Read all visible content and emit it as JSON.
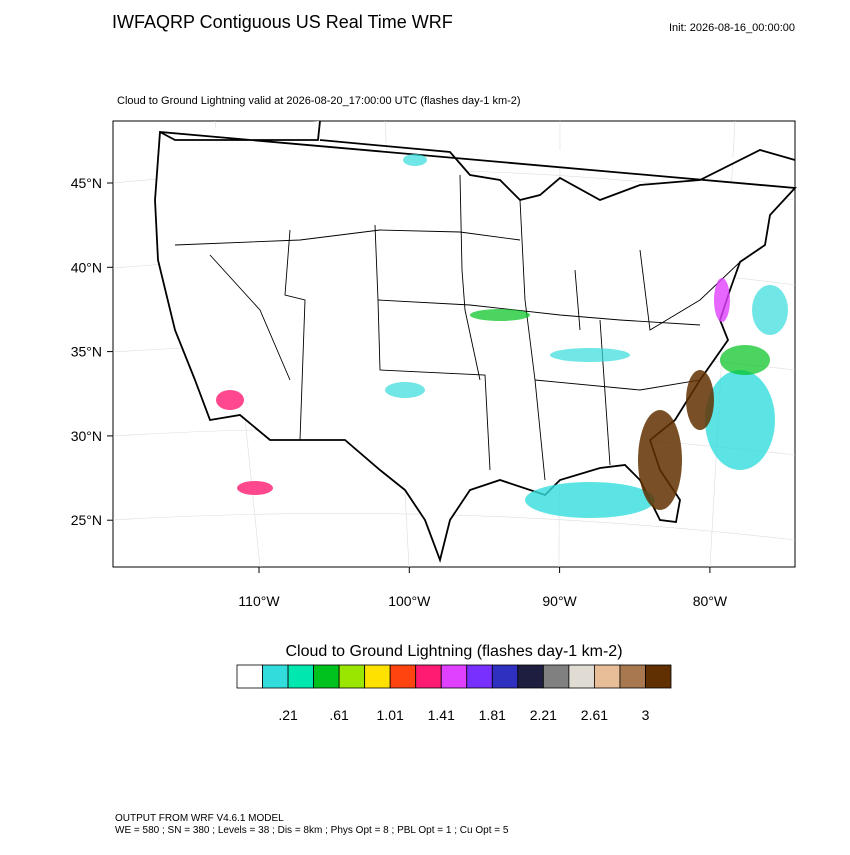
{
  "header": {
    "title": "IWFAQRP Contiguous US Real Time WRF",
    "init": "Init: 2026-08-16_00:00:00"
  },
  "map": {
    "subtitle": "Cloud to Ground Lightning valid at 2026-08-20_17:00:00 UTC   (flashes day-1 km-2)",
    "lat_labels": [
      "45°N",
      "40°N",
      "35°N",
      "30°N",
      "25°N"
    ],
    "lon_labels": [
      "110°W",
      "100°W",
      "90°W",
      "80°W"
    ]
  },
  "colorbar": {
    "title": "Cloud to Ground Lightning  (flashes day-1 km-2)",
    "colors": [
      "#ffffff",
      "#33dcdc",
      "#00e8b0",
      "#00c21e",
      "#9be600",
      "#ffe100",
      "#ff4410",
      "#ff1a72",
      "#e040ff",
      "#7830ff",
      "#3030c0",
      "#1e1e40",
      "#808080",
      "#e0dcd4",
      "#e8be98",
      "#a87850",
      "#603000"
    ],
    "labels": [
      ".21",
      ".61",
      "1.01",
      "1.41",
      "1.81",
      "2.21",
      "2.61",
      "3"
    ]
  },
  "footer": {
    "lines": [
      "OUTPUT FROM WRF V4.6.1 MODEL",
      "WE = 580 ; SN = 380 ; Levels = 38 ; Dis = 8km ; Phys Opt = 8 ; PBL Opt = 1 ; Cu Opt = 5"
    ]
  }
}
